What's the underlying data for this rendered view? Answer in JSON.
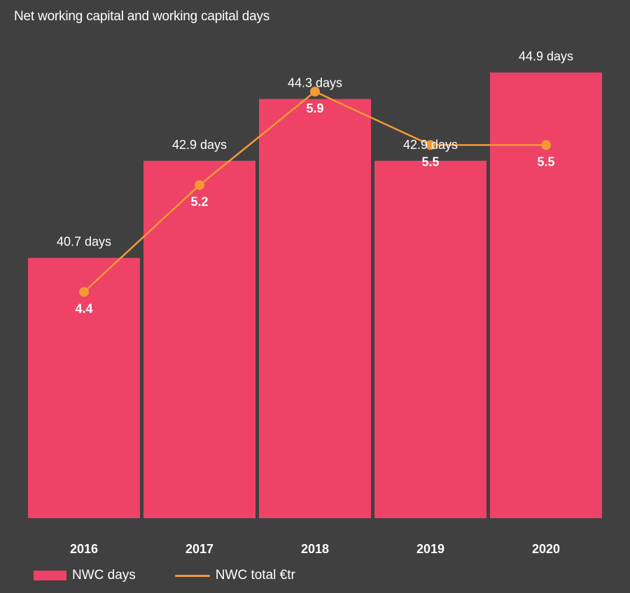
{
  "colors": {
    "bar": "#EE4266",
    "line": "#F39A35",
    "background": "#404041"
  },
  "chart_data": {
    "type": "bar",
    "title": "Net working capital and working capital days",
    "categories": [
      "2016",
      "2017",
      "2018",
      "2019",
      "2020"
    ],
    "series": [
      {
        "name": "NWC days",
        "kind": "bar",
        "values": [
          40.7,
          42.9,
          44.3,
          42.9,
          44.9
        ],
        "labels": [
          "40.7 days",
          "42.9 days",
          "44.3 days",
          "42.9 days",
          "44.9 days"
        ]
      },
      {
        "name": "NWC total €tr",
        "kind": "line",
        "values": [
          4.4,
          5.2,
          5.9,
          5.5,
          5.5
        ],
        "labels": [
          "4.4",
          "5.2",
          "5.9",
          "5.5",
          "5.5"
        ]
      }
    ],
    "xlabel": "",
    "ylabel": "",
    "grid": false,
    "legend_position": "bottom-left"
  }
}
